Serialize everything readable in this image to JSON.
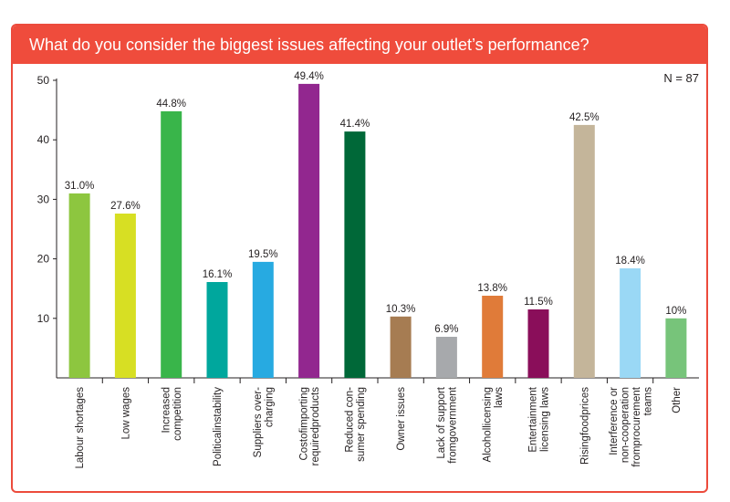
{
  "chart_data": {
    "type": "bar",
    "title": "What do you consider the biggest issues affecting your outlet’s performance?",
    "annotation": "N = 87",
    "xlabel": "",
    "ylabel": "",
    "ylim": [
      0,
      50
    ],
    "yticks": [
      10,
      20,
      30,
      40,
      50
    ],
    "categories": [
      "Labour shortages",
      "Low wages",
      "Increased competition",
      "Politicalinstability",
      "Suppliers over-charging",
      "Costofimporting requiredproducts",
      "Reduced con-sumer spending",
      "Owner issues",
      "Lack of support fromgovernment",
      "Alcohollicensing laws",
      "Entertainment licensing laws",
      "Risingfoodprices",
      "Interference or non-cooperation fromprocurement teams",
      "Other"
    ],
    "category_lines": [
      [
        "Labour shortages"
      ],
      [
        "Low wages"
      ],
      [
        "Increased",
        "competition"
      ],
      [
        "Politicalinstability"
      ],
      [
        "Suppliers over-",
        "charging"
      ],
      [
        "Costofimporting",
        "requiredproducts"
      ],
      [
        "Reduced con-",
        "sumer spending"
      ],
      [
        "Owner issues"
      ],
      [
        "Lack of support",
        "fromgovernment"
      ],
      [
        "Alcohollicensing",
        "laws"
      ],
      [
        "Entertainment",
        "licensing laws"
      ],
      [
        "Risingfoodprices"
      ],
      [
        "Interference or",
        "non-cooperation",
        "fromprocurement",
        "teams"
      ],
      [
        "Other"
      ]
    ],
    "values": [
      31.0,
      27.6,
      44.8,
      16.1,
      19.5,
      49.4,
      41.4,
      10.3,
      6.9,
      13.8,
      11.5,
      42.5,
      18.4,
      10
    ],
    "value_labels": [
      "31.0%",
      "27.6%",
      "44.8%",
      "16.1%",
      "19.5%",
      "49.4%",
      "41.4%",
      "10.3%",
      "6.9%",
      "13.8%",
      "11.5%",
      "42.5%",
      "18.4%",
      "10%"
    ],
    "colors": [
      "#8dc63f",
      "#d7df23",
      "#39b54a",
      "#00a79d",
      "#27aae1",
      "#92278f",
      "#006838",
      "#a67c52",
      "#a7a9ac",
      "#e07b39",
      "#8a0e5a",
      "#c4b59a",
      "#9ad8f5",
      "#77c47a"
    ]
  }
}
